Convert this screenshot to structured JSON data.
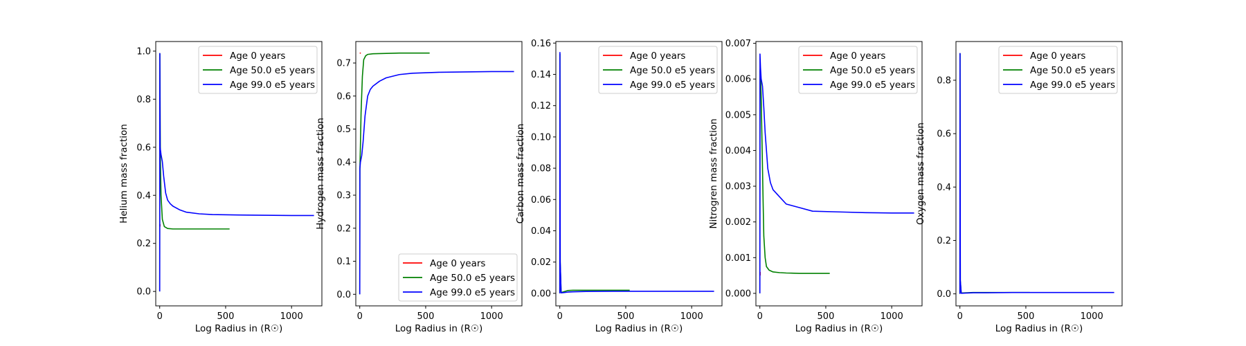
{
  "chart_data": [
    {
      "type": "line",
      "title": "",
      "xlabel": "Log Radius in (R☉)",
      "ylabel": "Helium mass fraction",
      "xlim": [
        -30,
        1230
      ],
      "ylim": [
        -0.06,
        1.04
      ],
      "xticks": [
        0,
        500,
        1000
      ],
      "yticks": [
        0.0,
        0.2,
        0.4,
        0.6,
        0.8,
        1.0
      ],
      "ytick_labels": [
        "0.0",
        "0.2",
        "0.4",
        "0.6",
        "0.8",
        "1.0"
      ],
      "legend_position": "upper right",
      "series": [
        {
          "name": "Age 0 years",
          "color": "#ff0000",
          "x": [
            2,
            2
          ],
          "y": [
            0.27,
            0.28
          ]
        },
        {
          "name": "Age 50.0 e5 years",
          "color": "#008000",
          "x": [
            0,
            1,
            5,
            10,
            20,
            35,
            60,
            100,
            200,
            300,
            400,
            530
          ],
          "y": [
            0.0,
            0.99,
            0.55,
            0.4,
            0.3,
            0.27,
            0.262,
            0.26,
            0.26,
            0.26,
            0.26,
            0.26
          ]
        },
        {
          "name": "Age 99.0 e5 years",
          "color": "#0000ff",
          "x": [
            0,
            1,
            3,
            10,
            20,
            30,
            45,
            60,
            80,
            100,
            150,
            200,
            300,
            400,
            600,
            800,
            1000,
            1170
          ],
          "y": [
            0.0,
            0.99,
            0.6,
            0.57,
            0.54,
            0.48,
            0.41,
            0.38,
            0.365,
            0.355,
            0.34,
            0.33,
            0.323,
            0.32,
            0.318,
            0.317,
            0.316,
            0.316
          ]
        }
      ]
    },
    {
      "type": "line",
      "title": "",
      "xlabel": "Log Radius in (R☉)",
      "ylabel": "Hydrogen mass fraction",
      "xlim": [
        -30,
        1230
      ],
      "ylim": [
        -0.035,
        0.765
      ],
      "xticks": [
        0,
        500,
        1000
      ],
      "yticks": [
        0.0,
        0.1,
        0.2,
        0.3,
        0.4,
        0.5,
        0.6,
        0.7
      ],
      "ytick_labels": [
        "0.0",
        "0.1",
        "0.2",
        "0.3",
        "0.4",
        "0.5",
        "0.6",
        "0.7"
      ],
      "legend_position": "lower right",
      "series": [
        {
          "name": "Age 0 years",
          "color": "#ff0000",
          "x": [
            0,
            8
          ],
          "y": [
            0.73,
            0.73
          ]
        },
        {
          "name": "Age 50.0 e5 years",
          "color": "#008000",
          "x": [
            0,
            1,
            5,
            10,
            20,
            30,
            45,
            60,
            100,
            200,
            300,
            530
          ],
          "y": [
            0.0,
            0.38,
            0.45,
            0.55,
            0.66,
            0.71,
            0.722,
            0.726,
            0.728,
            0.729,
            0.73,
            0.73
          ]
        },
        {
          "name": "Age 99.0 e5 years",
          "color": "#0000ff",
          "x": [
            0,
            1,
            5,
            15,
            25,
            40,
            60,
            80,
            100,
            150,
            200,
            300,
            400,
            600,
            800,
            1000,
            1170
          ],
          "y": [
            0.0,
            0.38,
            0.4,
            0.42,
            0.46,
            0.54,
            0.6,
            0.62,
            0.63,
            0.645,
            0.655,
            0.665,
            0.669,
            0.672,
            0.673,
            0.674,
            0.674
          ]
        }
      ]
    },
    {
      "type": "line",
      "title": "",
      "xlabel": "Log Radius in (R☉)",
      "ylabel": "Carbon mass fraction",
      "xlim": [
        -30,
        1230
      ],
      "ylim": [
        -0.008,
        0.161
      ],
      "xticks": [
        0,
        500,
        1000
      ],
      "yticks": [
        0.0,
        0.02,
        0.04,
        0.06,
        0.08,
        0.1,
        0.12,
        0.14,
        0.16
      ],
      "ytick_labels": [
        "0.00",
        "0.02",
        "0.04",
        "0.06",
        "0.08",
        "0.10",
        "0.12",
        "0.14",
        "0.16"
      ],
      "legend_position": "upper right",
      "series": [
        {
          "name": "Age 0 years",
          "color": "#ff0000",
          "x": [
            2,
            2
          ],
          "y": [
            0.002,
            0.004
          ]
        },
        {
          "name": "Age 50.0 e5 years",
          "color": "#008000",
          "x": [
            0,
            1,
            3,
            10,
            30,
            60,
            100,
            200,
            300,
            530
          ],
          "y": [
            0.0,
            0.153,
            0.02,
            0.0005,
            0.001,
            0.0018,
            0.002,
            0.002,
            0.002,
            0.002
          ]
        },
        {
          "name": "Age 99.0 e5 years",
          "color": "#0000ff",
          "x": [
            0,
            1,
            3,
            10,
            30,
            60,
            100,
            200,
            400,
            700,
            1000,
            1170
          ],
          "y": [
            0.0,
            0.154,
            0.02,
            0.0003,
            0.0005,
            0.0008,
            0.001,
            0.0012,
            0.0013,
            0.0013,
            0.0013,
            0.0013
          ]
        }
      ]
    },
    {
      "type": "line",
      "title": "",
      "xlabel": "Log Radius in (R☉)",
      "ylabel": "Nitrogren mass fraction",
      "xlim": [
        -30,
        1230
      ],
      "ylim": [
        -0.00035,
        0.00705
      ],
      "xticks": [
        0,
        500,
        1000
      ],
      "yticks": [
        0.0,
        0.001,
        0.002,
        0.003,
        0.004,
        0.005,
        0.006,
        0.007
      ],
      "ytick_labels": [
        "0.000",
        "0.001",
        "0.002",
        "0.003",
        "0.004",
        "0.005",
        "0.006",
        "0.007"
      ],
      "legend_position": "upper right",
      "series": [
        {
          "name": "Age 0 years",
          "color": "#ff0000",
          "x": [
            2,
            2
          ],
          "y": [
            0.0005,
            0.0006
          ]
        },
        {
          "name": "Age 50.0 e5 years",
          "color": "#008000",
          "x": [
            0,
            1,
            3,
            6,
            10,
            15,
            20,
            25,
            30,
            40,
            50,
            70,
            100,
            150,
            200,
            300,
            400,
            530
          ],
          "y": [
            0.0,
            0.0062,
            0.0063,
            0.006,
            0.0055,
            0.0045,
            0.0035,
            0.0025,
            0.0016,
            0.001,
            0.00075,
            0.00065,
            0.0006,
            0.00058,
            0.00057,
            0.00056,
            0.00056,
            0.00056
          ]
        },
        {
          "name": "Age 99.0 e5 years",
          "color": "#0000ff",
          "x": [
            0,
            1,
            5,
            10,
            20,
            30,
            40,
            50,
            60,
            70,
            80,
            100,
            150,
            200,
            300,
            400,
            600,
            800,
            1000,
            1170
          ],
          "y": [
            0.0,
            0.0067,
            0.0063,
            0.006,
            0.0058,
            0.0052,
            0.0045,
            0.004,
            0.0035,
            0.0033,
            0.0031,
            0.0029,
            0.0027,
            0.0025,
            0.0024,
            0.0023,
            0.00228,
            0.00226,
            0.00225,
            0.00225
          ]
        }
      ]
    },
    {
      "type": "line",
      "title": "",
      "xlabel": "Log Radius in (R☉)",
      "ylabel": "Oxygen mass fraction",
      "xlim": [
        -30,
        1230
      ],
      "ylim": [
        -0.045,
        0.945
      ],
      "xticks": [
        0,
        500,
        1000
      ],
      "yticks": [
        0.0,
        0.2,
        0.4,
        0.6,
        0.8
      ],
      "ytick_labels": [
        "0.0",
        "0.2",
        "0.4",
        "0.6",
        "0.8"
      ],
      "legend_position": "upper right",
      "series": [
        {
          "name": "Age 0 years",
          "color": "#ff0000",
          "x": [
            2,
            2
          ],
          "y": [
            0.005,
            0.01
          ]
        },
        {
          "name": "Age 50.0 e5 years",
          "color": "#008000",
          "x": [
            0,
            1,
            3,
            10,
            50,
            100,
            200,
            300,
            530
          ],
          "y": [
            0.0,
            0.9,
            0.05,
            0.003,
            0.004,
            0.005,
            0.005,
            0.005,
            0.005
          ]
        },
        {
          "name": "Age 99.0 e5 years",
          "color": "#0000ff",
          "x": [
            0,
            1,
            3,
            10,
            50,
            100,
            200,
            400,
            700,
            1000,
            1170
          ],
          "y": [
            0.0,
            0.9,
            0.05,
            0.002,
            0.003,
            0.004,
            0.004,
            0.005,
            0.005,
            0.005,
            0.005
          ]
        }
      ]
    }
  ]
}
